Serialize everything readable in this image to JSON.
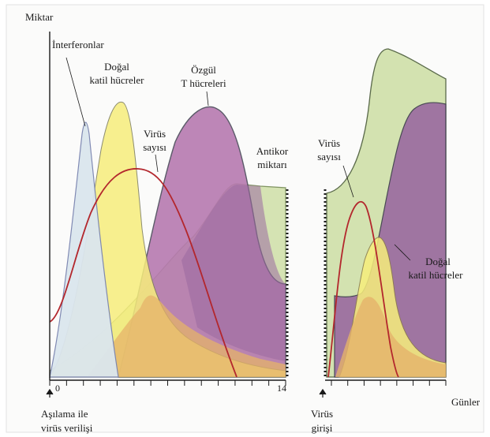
{
  "labels": {
    "y_axis": "Miktar",
    "x_axis": "Günler",
    "interferon": "İnterferonlar",
    "nk_left_line1": "Doğal",
    "nk_left_line2": "katil hücreler",
    "tcell_line1": "Özgül",
    "tcell_line2": "T hücreleri",
    "virus_left_line1": "Virüs",
    "virus_left_line2": "sayısı",
    "antibody_line1": "Antikor",
    "antibody_line2": "miktarı",
    "virus_right_line1": "Virüs",
    "virus_right_line2": "sayısı",
    "nk_right_line1": "Doğal",
    "nk_right_line2": "katil hücreler",
    "tick_start": "0",
    "tick_end": "14",
    "event_vaccine_line1": "Aşılama ile",
    "event_vaccine_line2": "virüs verilişi",
    "event_entry_line1": "Virüs",
    "event_entry_line2": "girişi"
  },
  "colors": {
    "interferon": "#dbe6ee",
    "natural_killer": "#f7ee7c",
    "t_cells": "#b77ab0",
    "antibody": "#d3e2b0",
    "virus_line": "#b3272d",
    "overlap_orange": "#e5b36a",
    "axis": "#1a1a1a"
  }
}
